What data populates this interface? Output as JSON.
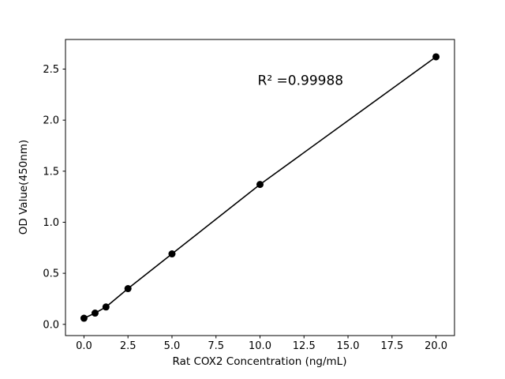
{
  "figure": {
    "background": "#ffffff"
  },
  "chart_data": {
    "type": "scatter",
    "title": "",
    "xlabel": "Rat COX2 Concentration (ng/mL)",
    "ylabel": "OD Value(450nm)",
    "x": [
      0,
      0.63,
      1.25,
      2.5,
      5,
      10,
      20
    ],
    "y": [
      0.06,
      0.11,
      0.17,
      0.35,
      0.69,
      1.37,
      2.62
    ],
    "xlim": [
      -1.05,
      21.05
    ],
    "ylim": [
      -0.11,
      2.79
    ],
    "xticks": [
      0.0,
      2.5,
      5.0,
      7.5,
      10.0,
      12.5,
      15.0,
      17.5,
      20.0
    ],
    "xtick_labels": [
      "0.0",
      "2.5",
      "5.0",
      "7.5",
      "10.0",
      "12.5",
      "15.0",
      "17.5",
      "20.0"
    ],
    "yticks": [
      0.0,
      0.5,
      1.0,
      1.5,
      2.0,
      2.5
    ],
    "ytick_labels": [
      "0.0",
      "0.5",
      "1.0",
      "1.5",
      "2.0",
      "2.5"
    ],
    "grid": false,
    "legend": null,
    "marker_color": "#000000",
    "line_color": "#000000",
    "annotation": {
      "text": "R² =0.99988",
      "x": 12.3,
      "y": 2.39
    }
  }
}
